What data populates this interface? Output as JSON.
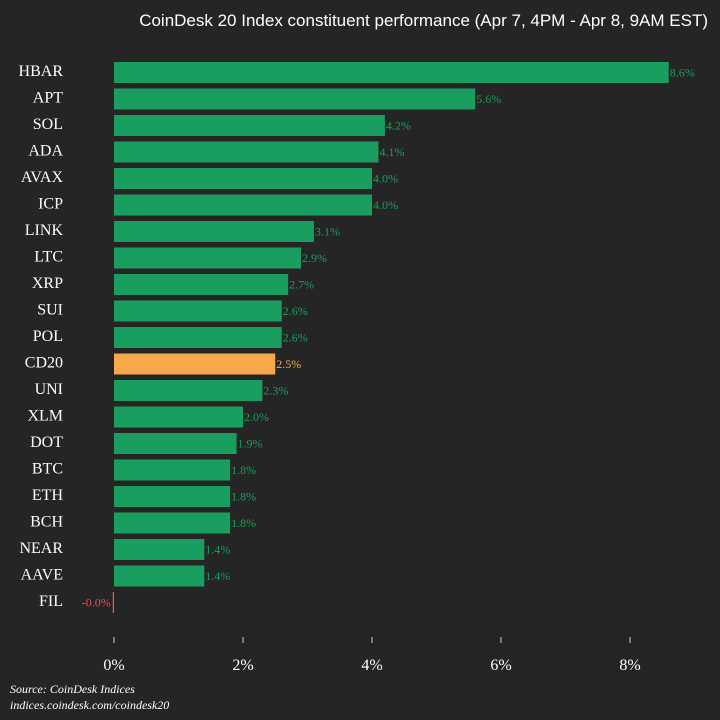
{
  "chart_data": {
    "type": "barh",
    "title": "CoinDesk 20 Index constituent performance (Apr 7, 4PM - Apr 8, 9AM EST)",
    "categories": [
      "HBAR",
      "APT",
      "SOL",
      "ADA",
      "AVAX",
      "ICP",
      "LINK",
      "LTC",
      "XRP",
      "SUI",
      "POL",
      "CD20",
      "UNI",
      "XLM",
      "DOT",
      "BTC",
      "ETH",
      "BCH",
      "NEAR",
      "AAVE",
      "FIL"
    ],
    "values": [
      8.6,
      5.6,
      4.2,
      4.1,
      4.0,
      4.0,
      3.1,
      2.9,
      2.7,
      2.6,
      2.6,
      2.5,
      2.3,
      2.0,
      1.9,
      1.8,
      1.8,
      1.8,
      1.4,
      1.4,
      -0.02
    ],
    "value_labels": [
      "8.6%",
      "5.6%",
      "4.2%",
      "4.1%",
      "4.0%",
      "4.0%",
      "3.1%",
      "2.9%",
      "2.7%",
      "2.6%",
      "2.6%",
      "2.5%",
      "2.3%",
      "2.0%",
      "1.9%",
      "1.8%",
      "1.8%",
      "1.8%",
      "1.4%",
      "1.4%",
      "-0.0%"
    ],
    "colors": [
      "#1a9e5f",
      "#1a9e5f",
      "#1a9e5f",
      "#1a9e5f",
      "#1a9e5f",
      "#1a9e5f",
      "#1a9e5f",
      "#1a9e5f",
      "#1a9e5f",
      "#1a9e5f",
      "#1a9e5f",
      "#f7a84a",
      "#1a9e5f",
      "#1a9e5f",
      "#1a9e5f",
      "#1a9e5f",
      "#1a9e5f",
      "#1a9e5f",
      "#1a9e5f",
      "#1a9e5f",
      "#e0564a"
    ],
    "xlim": [
      -0.1,
      8.9
    ],
    "xticks": [
      {
        "value": 0,
        "label": "0%"
      },
      {
        "value": 2,
        "label": "2%"
      },
      {
        "value": 4,
        "label": "4%"
      },
      {
        "value": 6,
        "label": "6%"
      },
      {
        "value": 8,
        "label": "8%"
      }
    ],
    "source": "Source: CoinDesk Indices",
    "url": "indices.coindesk.com/coindesk20"
  }
}
